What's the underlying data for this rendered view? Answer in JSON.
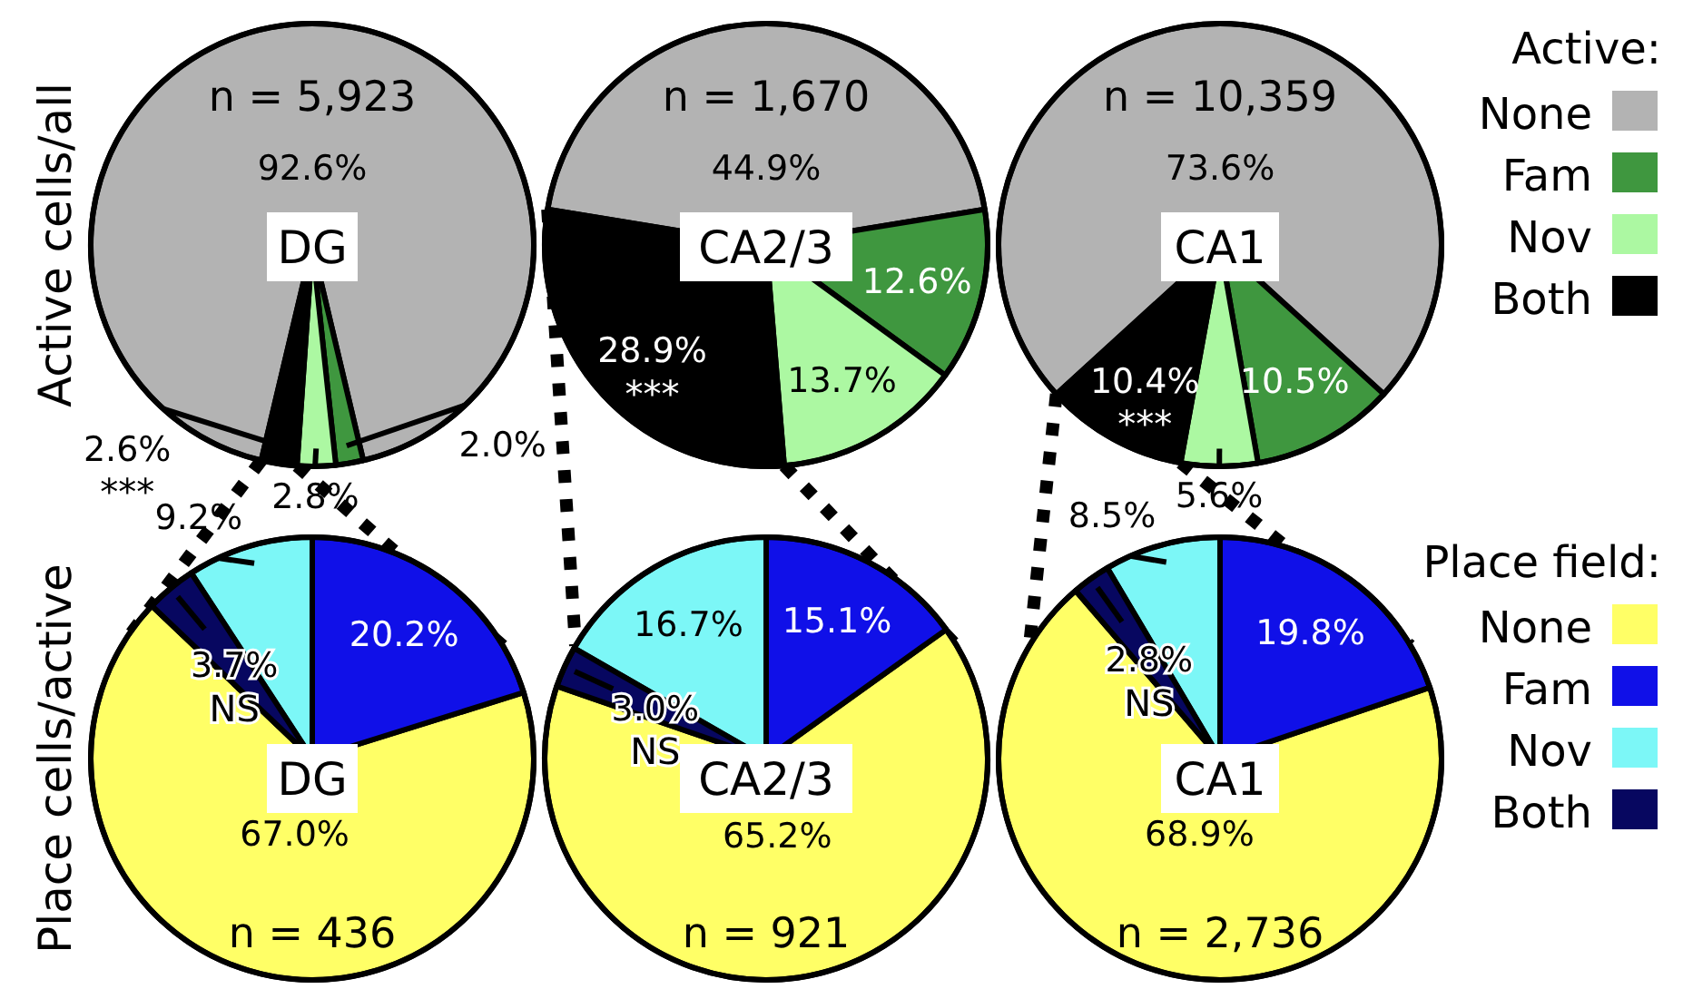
{
  "chart_data": [
    {
      "type": "pie",
      "title": "DG",
      "subtitle": "n = 5,923",
      "ylabel": "Active cells/all",
      "values": [
        92.6,
        2.0,
        2.8,
        2.6
      ],
      "colors": [
        "#b3b3b3",
        "#3f973f",
        "#acf8a2",
        "#000000"
      ],
      "value_labels": [
        "92.6%",
        "2.0%",
        "2.8%",
        "2.6%"
      ],
      "annotations": [
        "***"
      ],
      "legend": false
    },
    {
      "type": "pie",
      "title": "CA2/3",
      "subtitle": "n = 1,670",
      "values": [
        44.9,
        12.6,
        13.7,
        28.9
      ],
      "colors": [
        "#b3b3b3",
        "#3f973f",
        "#acf8a2",
        "#000000"
      ],
      "value_labels": [
        "44.9%",
        "12.6%",
        "13.7%",
        "28.9%"
      ],
      "annotations": [
        "***"
      ],
      "legend": false
    },
    {
      "type": "pie",
      "title": "CA1",
      "subtitle": "n = 10,359",
      "categories": [
        "None",
        "Fam",
        "Nov",
        "Both"
      ],
      "values": [
        73.6,
        10.5,
        5.6,
        10.4
      ],
      "colors": [
        "#b3b3b3",
        "#3f973f",
        "#acf8a2",
        "#000000"
      ],
      "value_labels": [
        "73.6%",
        "10.5%",
        "5.6%",
        "10.4%"
      ],
      "annotations": [
        "***"
      ],
      "legend": "right",
      "legend_title": "Active:"
    },
    {
      "type": "pie",
      "title": "DG",
      "subtitle": "n = 436",
      "ylabel": "Place cells/active",
      "values": [
        67.0,
        20.2,
        9.2,
        3.7
      ],
      "colors": [
        "#ffff66",
        "#1010e8",
        "#7cf7f7",
        "#070760"
      ],
      "value_labels": [
        "67.0%",
        "20.2%",
        "9.2%",
        "3.7%"
      ],
      "annotations": [
        "NS"
      ],
      "legend": false
    },
    {
      "type": "pie",
      "title": "CA2/3",
      "subtitle": "n = 921",
      "values": [
        65.2,
        15.1,
        16.7,
        3.0
      ],
      "colors": [
        "#ffff66",
        "#1010e8",
        "#7cf7f7",
        "#070760"
      ],
      "value_labels": [
        "65.2%",
        "15.1%",
        "16.7%",
        "3.0%"
      ],
      "annotations": [
        "NS"
      ],
      "legend": false
    },
    {
      "type": "pie",
      "title": "CA1",
      "subtitle": "n = 2,736",
      "categories": [
        "None",
        "Fam",
        "Nov",
        "Both"
      ],
      "values": [
        68.9,
        19.8,
        8.5,
        2.8
      ],
      "colors": [
        "#ffff66",
        "#1010e8",
        "#7cf7f7",
        "#070760"
      ],
      "value_labels": [
        "68.9%",
        "19.8%",
        "8.5%",
        "2.8%"
      ],
      "annotations": [
        "NS"
      ],
      "legend": "right",
      "legend_title": "Place field:"
    }
  ]
}
